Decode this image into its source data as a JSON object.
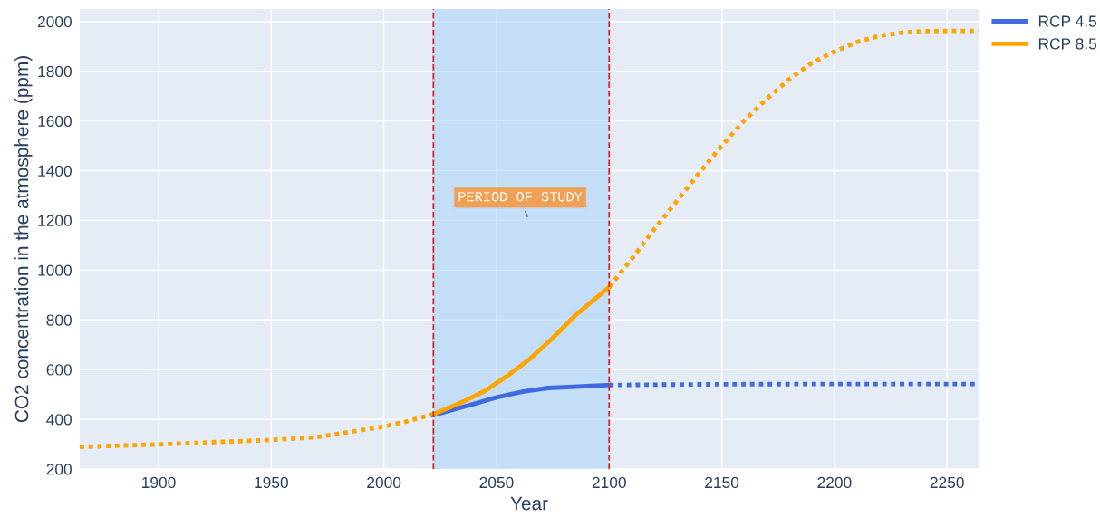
{
  "chart_data": {
    "type": "line",
    "xlabel": "Year",
    "ylabel": "CO2 concentration in the atmosphere (ppm)",
    "xlim": [
      1865,
      2264
    ],
    "xticks": [
      1900,
      1950,
      2000,
      2050,
      2100,
      2150,
      2200,
      2250
    ],
    "ylim": [
      200,
      2050
    ],
    "yticks": [
      200,
      400,
      600,
      800,
      1000,
      1200,
      1400,
      1600,
      1800,
      2000
    ],
    "grid": true,
    "legend": "top right",
    "series": [
      {
        "color": "#ffa500",
        "line_style": "dotted",
        "x": [
          1865,
          1900,
          1950,
          1970,
          1985,
          2000,
          2010,
          2022
        ],
        "values": [
          289,
          299,
          317,
          328,
          349,
          371,
          391,
          420
        ]
      },
      {
        "name": "RCP 4.5",
        "color": "#4169e1",
        "line_style": "solid",
        "x": [
          2022,
          2040,
          2050,
          2062,
          2073,
          2100
        ],
        "values": [
          417,
          462,
          488,
          512,
          526,
          538
        ]
      },
      {
        "name": "RCP 8.5",
        "color": "#ffa500",
        "line_style": "solid",
        "x": [
          2022,
          2035,
          2045,
          2055,
          2065,
          2075,
          2085,
          2100
        ],
        "values": [
          420,
          470,
          515,
          576,
          644,
          727,
          818,
          932
        ]
      },
      {
        "color": "#4169e1",
        "line_style": "dotted",
        "x": [
          2100,
          2150,
          2200,
          2264
        ],
        "values": [
          538,
          541,
          542,
          542
        ]
      },
      {
        "color": "#ffa500",
        "line_style": "dotted",
        "x": [
          2100,
          2110,
          2120,
          2130,
          2140,
          2150,
          2160,
          2170,
          2180,
          2190,
          2200,
          2210,
          2220,
          2230,
          2240,
          2250,
          2264
        ],
        "values": [
          932,
          1045,
          1164,
          1277,
          1391,
          1500,
          1602,
          1689,
          1768,
          1833,
          1879,
          1917,
          1942,
          1955,
          1961,
          1962,
          1962
        ]
      }
    ],
    "bands": [
      {
        "axis": "x",
        "from": 2022,
        "to": 2100,
        "color": "#a8d4f5"
      }
    ],
    "ref_lines": [
      {
        "axis": "x",
        "value": 2022,
        "color": "#d62728",
        "line_style": "dashed"
      },
      {
        "axis": "x",
        "value": 2100,
        "color": "#d62728",
        "line_style": "dashed"
      }
    ],
    "annotations": [
      "PERIOD OF STUDY"
    ]
  }
}
